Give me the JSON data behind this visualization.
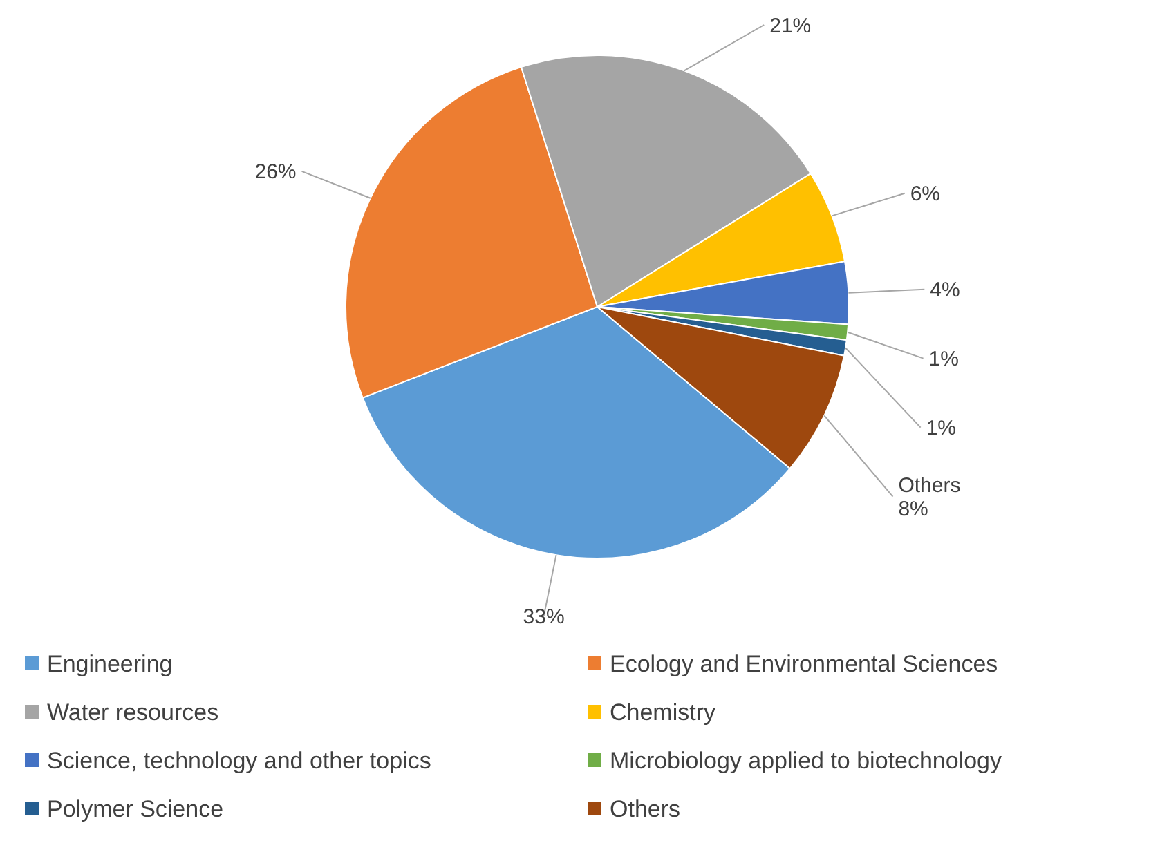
{
  "chart_data": {
    "type": "pie",
    "categories": [
      "Engineering",
      "Ecology and Environmental Sciences",
      "Water resources",
      "Chemistry",
      "Science, technology and other topics",
      "Microbiology applied to biotechnology",
      "Polymer Science",
      "Others"
    ],
    "values": [
      33,
      26,
      21,
      6,
      4,
      1,
      1,
      8
    ],
    "colors": [
      "#5b9bd5",
      "#ed7d31",
      "#a5a5a5",
      "#ffc000",
      "#4472c4",
      "#70ad47",
      "#255e91",
      "#9e480e"
    ],
    "value_labels": [
      "33%",
      "26%",
      "21%",
      "6%",
      "4%",
      "1%",
      "1%",
      "Others\n8%"
    ],
    "legend": "bottom"
  }
}
